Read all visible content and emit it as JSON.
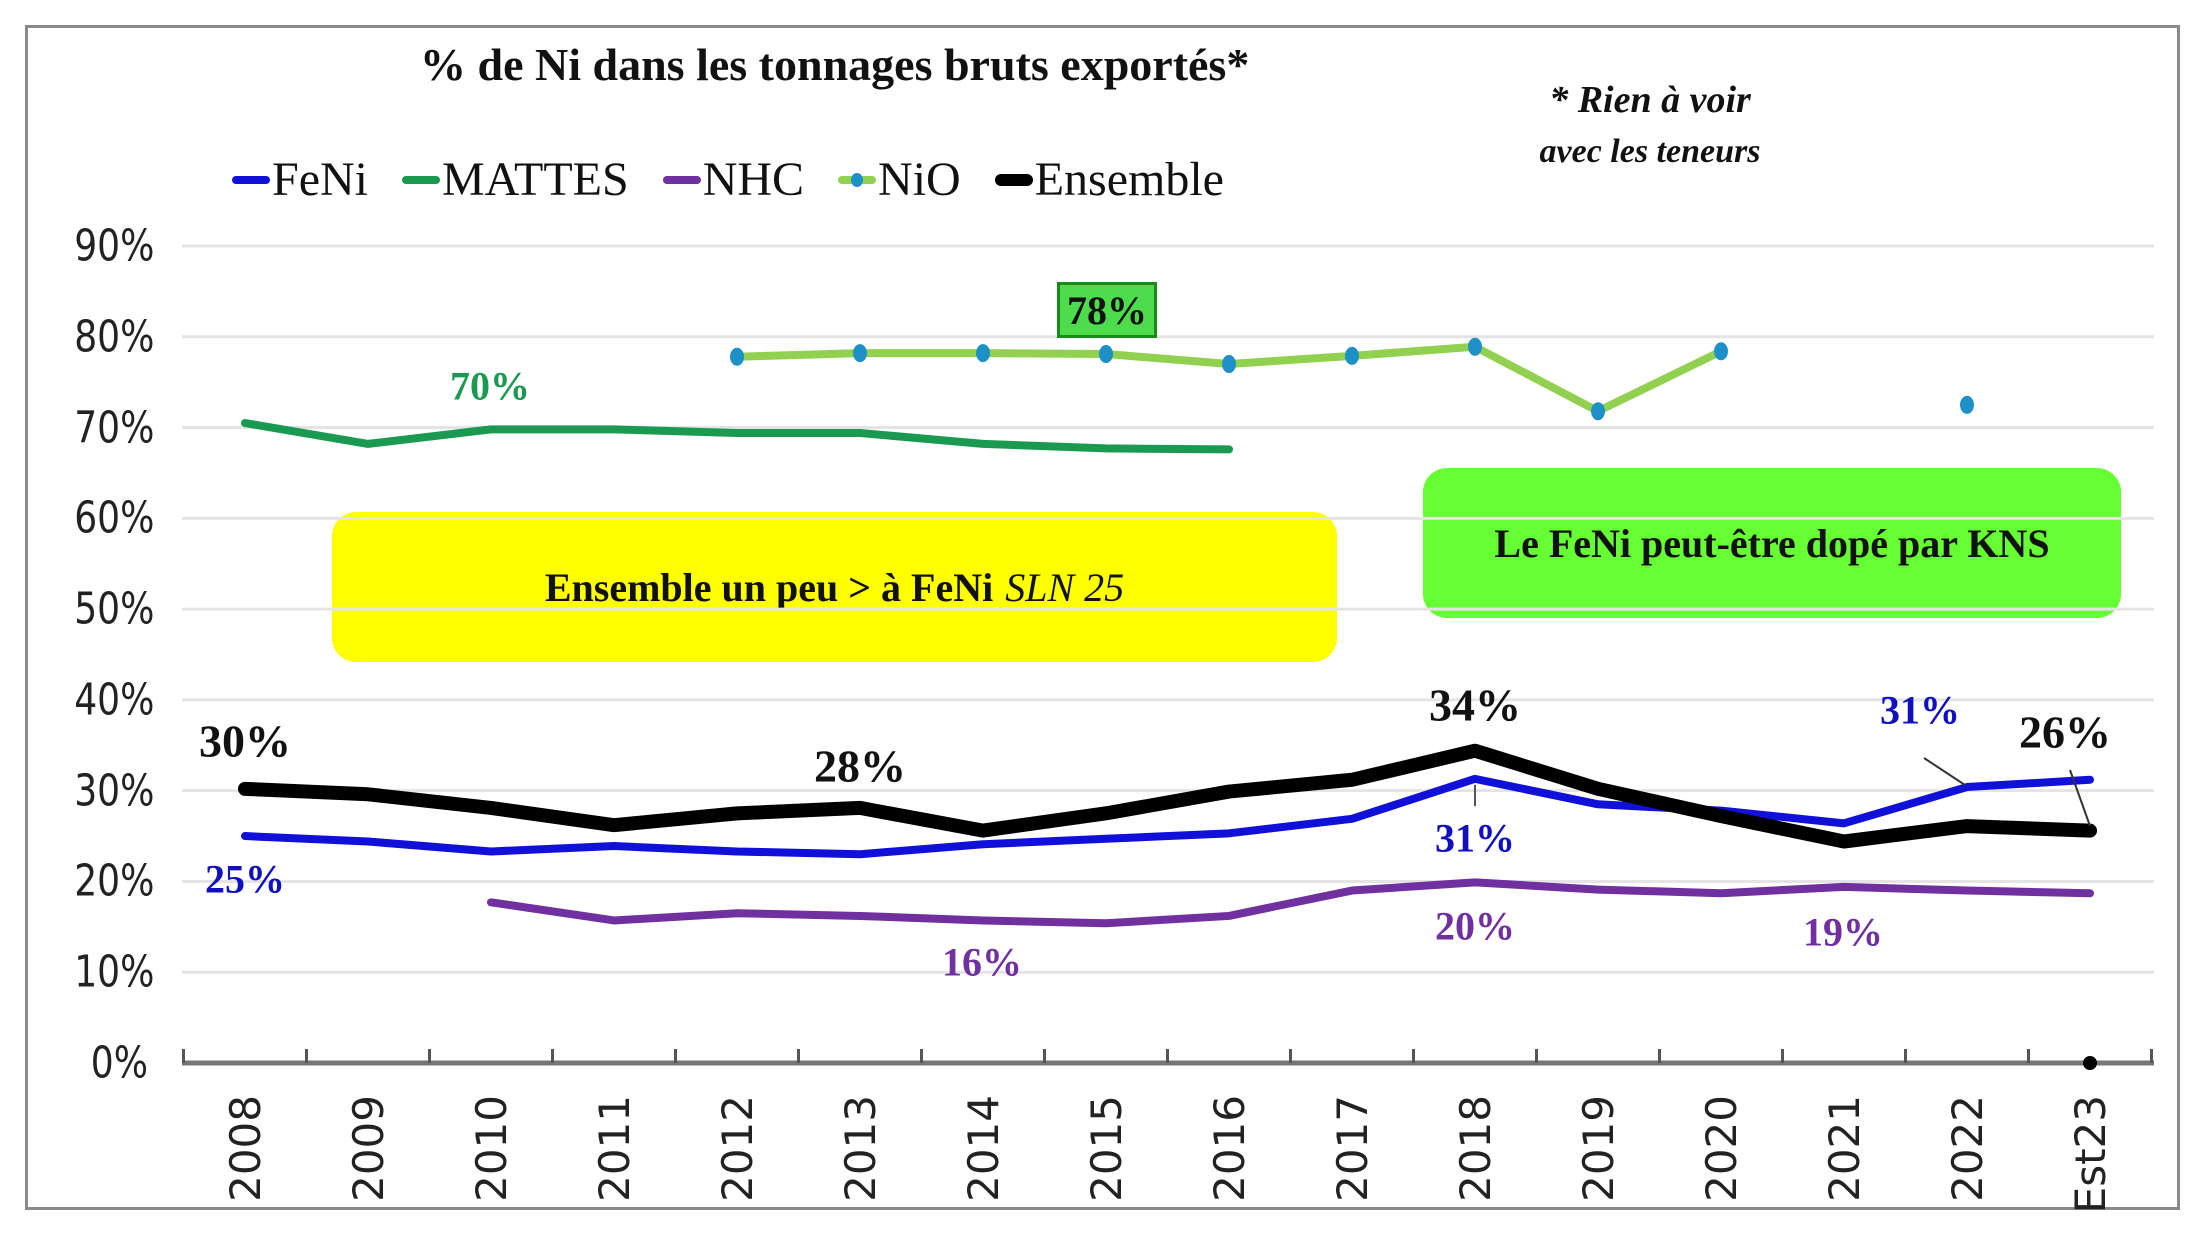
{
  "chart_data": {
    "type": "line",
    "title": "% de Ni dans les tonnages bruts exportés*",
    "footnote": [
      "* Rien à voir",
      "avec les teneurs"
    ],
    "xlabel": "",
    "ylabel": "",
    "ylim": [
      0,
      90
    ],
    "yticks": [
      "0%",
      "10%",
      "20%",
      "30%",
      "40%",
      "50%",
      "60%",
      "70%",
      "80%",
      "90%"
    ],
    "grid": true,
    "legend_position": "top",
    "categories": [
      "2008",
      "2009",
      "2010",
      "2011",
      "2012",
      "2013",
      "2014",
      "2015",
      "2016",
      "2017",
      "2018",
      "2019",
      "2020",
      "2021",
      "2022",
      "Est23"
    ],
    "series": [
      {
        "name": "FeNi",
        "color": "#1010d8",
        "width": "normal",
        "values": [
          25.0,
          24.4,
          23.3,
          23.9,
          23.3,
          23.0,
          24.1,
          24.7,
          25.3,
          26.9,
          31.3,
          28.5,
          27.8,
          26.4,
          30.4,
          31.2
        ]
      },
      {
        "name": "MATTES",
        "color": "#1a9a50",
        "width": "normal",
        "values": [
          70.5,
          68.2,
          69.8,
          69.8,
          69.4,
          69.4,
          68.2,
          67.7,
          67.6,
          null,
          null,
          null,
          null,
          null,
          null,
          null
        ]
      },
      {
        "name": "NHC",
        "color": "#7030a0",
        "width": "normal",
        "values": [
          null,
          null,
          17.7,
          15.7,
          16.5,
          16.2,
          15.7,
          15.4,
          16.2,
          19.0,
          19.9,
          19.1,
          18.7,
          19.4,
          19.0,
          18.7
        ]
      },
      {
        "name": "NiO",
        "color": "#92d050",
        "marker_color": "#1e90c8",
        "width": "normal",
        "markers": true,
        "values": [
          null,
          null,
          null,
          null,
          77.8,
          78.2,
          78.2,
          78.1,
          77.0,
          77.9,
          78.9,
          71.8,
          78.4,
          null,
          72.5,
          null
        ]
      },
      {
        "name": "Ensemble",
        "color": "#000000",
        "width": "thick",
        "values": [
          30.2,
          29.6,
          28.1,
          26.2,
          27.5,
          28.1,
          25.6,
          27.5,
          29.9,
          31.2,
          34.4,
          30.2,
          27.2,
          24.4,
          26.1,
          25.6
        ]
      }
    ],
    "annotations": [
      {
        "text": "70%",
        "series": "MATTES",
        "at": "2010",
        "color": "#1a9a50"
      },
      {
        "text": "78%",
        "series": "NiO",
        "at": "2015",
        "color": "#111111",
        "boxed": true,
        "box_color": "#4cdc4c"
      },
      {
        "text": "30%",
        "series": "Ensemble",
        "at": "2008",
        "color": "#111111"
      },
      {
        "text": "28%",
        "series": "Ensemble",
        "at": "2013",
        "color": "#111111"
      },
      {
        "text": "34%",
        "series": "Ensemble",
        "at": "2018",
        "color": "#111111"
      },
      {
        "text": "26%",
        "series": "Ensemble",
        "at": "Est23",
        "color": "#111111"
      },
      {
        "text": "25%",
        "series": "FeNi",
        "at": "2008",
        "color": "#1010c0"
      },
      {
        "text": "31%",
        "series": "FeNi",
        "at": "2018",
        "color": "#1010c0"
      },
      {
        "text": "31%",
        "series": "FeNi",
        "at": "Est23",
        "color": "#1010c0"
      },
      {
        "text": "16%",
        "series": "NHC",
        "at": "2014",
        "color": "#7030a0"
      },
      {
        "text": "20%",
        "series": "NHC",
        "at": "2018",
        "color": "#7030a0"
      },
      {
        "text": "19%",
        "series": "NHC",
        "at": "2021",
        "color": "#7030a0"
      }
    ],
    "callouts": [
      {
        "text": "Ensemble un peu > à  FeNi",
        "italic_suffix": "SLN 25",
        "color": "#ffff00"
      },
      {
        "text": "Le FeNi peut-être dopé par KNS",
        "color": "#66ff33"
      }
    ]
  }
}
